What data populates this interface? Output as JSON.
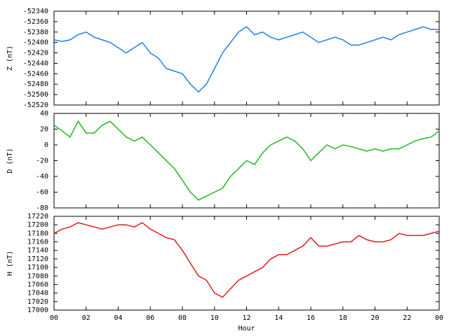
{
  "chart_data": [
    {
      "type": "line",
      "ylabel": "Z (nT)",
      "ylim": [
        -52520,
        -52340
      ],
      "yticks": [
        -52520,
        -52500,
        -52480,
        -52460,
        -52440,
        -52420,
        -52400,
        -52380,
        -52360,
        -52340
      ],
      "xlim": [
        0,
        24
      ],
      "x": [
        0,
        0.5,
        1,
        1.5,
        2,
        2.5,
        3,
        3.5,
        4,
        4.5,
        5,
        5.5,
        6,
        6.5,
        7,
        7.5,
        8,
        8.5,
        9,
        9.5,
        10,
        10.5,
        11,
        11.5,
        12,
        12.5,
        13,
        13.5,
        14,
        14.5,
        15,
        15.5,
        16,
        16.5,
        17,
        17.5,
        18,
        18.5,
        19,
        19.5,
        20,
        20.5,
        21,
        21.5,
        22,
        22.5,
        23,
        23.5,
        24
      ],
      "series": [
        {
          "color": "#1e7fe8",
          "values": [
            -52395,
            -52398,
            -52395,
            -52385,
            -52380,
            -52390,
            -52395,
            -52400,
            -52410,
            -52420,
            -52410,
            -52400,
            -52420,
            -52430,
            -52450,
            -52455,
            -52460,
            -52480,
            -52495,
            -52480,
            -52450,
            -52420,
            -52400,
            -52380,
            -52370,
            -52385,
            -52380,
            -52390,
            -52395,
            -52390,
            -52385,
            -52380,
            -52390,
            -52400,
            -52395,
            -52390,
            -52395,
            -52405,
            -52405,
            -52400,
            -52395,
            -52390,
            -52395,
            -52385,
            -52380,
            -52375,
            -52370,
            -52375,
            -52375
          ]
        }
      ]
    },
    {
      "type": "line",
      "ylabel": "D (nT)",
      "ylim": [
        -80,
        40
      ],
      "yticks": [
        -80,
        -60,
        -40,
        -20,
        0,
        20,
        40
      ],
      "xlim": [
        0,
        24
      ],
      "x": [
        0,
        0.5,
        1,
        1.5,
        2,
        2.5,
        3,
        3.5,
        4,
        4.5,
        5,
        5.5,
        6,
        6.5,
        7,
        7.5,
        8,
        8.5,
        9,
        9.5,
        10,
        10.5,
        11,
        11.5,
        12,
        12.5,
        13,
        13.5,
        14,
        14.5,
        15,
        15.5,
        16,
        16.5,
        17,
        17.5,
        18,
        18.5,
        19,
        19.5,
        20,
        20.5,
        21,
        21.5,
        22,
        22.5,
        23,
        23.5,
        24
      ],
      "series": [
        {
          "color": "#22b822",
          "values": [
            25,
            18,
            10,
            30,
            15,
            15,
            25,
            30,
            20,
            10,
            5,
            10,
            0,
            -10,
            -20,
            -30,
            -45,
            -60,
            -70,
            -65,
            -60,
            -55,
            -40,
            -30,
            -20,
            -25,
            -10,
            0,
            5,
            10,
            5,
            -5,
            -20,
            -10,
            0,
            -5,
            0,
            -2,
            -5,
            -8,
            -5,
            -8,
            -5,
            -5,
            0,
            5,
            8,
            10,
            18
          ]
        }
      ]
    },
    {
      "type": "line",
      "ylabel": "H (nT)",
      "xlabel": "Hour",
      "ylim": [
        17000,
        17220
      ],
      "yticks": [
        17000,
        17020,
        17040,
        17060,
        17080,
        17100,
        17120,
        17140,
        17160,
        17180,
        17200,
        17220
      ],
      "xlim": [
        0,
        24
      ],
      "xticks": [
        {
          "value": 0,
          "label": "00"
        },
        {
          "value": 2,
          "label": "02"
        },
        {
          "value": 4,
          "label": "04"
        },
        {
          "value": 6,
          "label": "06"
        },
        {
          "value": 8,
          "label": "08"
        },
        10,
        12,
        14,
        16,
        18,
        20,
        22,
        {
          "value": 24,
          "label": "00"
        }
      ],
      "x": [
        0,
        0.5,
        1,
        1.5,
        2,
        2.5,
        3,
        3.5,
        4,
        4.5,
        5,
        5.5,
        6,
        6.5,
        7,
        7.5,
        8,
        8.5,
        9,
        9.5,
        10,
        10.5,
        11,
        11.5,
        12,
        12.5,
        13,
        13.5,
        14,
        14.5,
        15,
        15.5,
        16,
        16.5,
        17,
        17.5,
        18,
        18.5,
        19,
        19.5,
        20,
        20.5,
        21,
        21.5,
        22,
        22.5,
        23,
        23.5,
        24
      ],
      "series": [
        {
          "color": "#e01c1c",
          "values": [
            17180,
            17190,
            17195,
            17205,
            17200,
            17195,
            17190,
            17195,
            17200,
            17200,
            17195,
            17205,
            17190,
            17180,
            17170,
            17165,
            17140,
            17110,
            17080,
            17070,
            17040,
            17030,
            17050,
            17070,
            17080,
            17090,
            17100,
            17120,
            17130,
            17130,
            17140,
            17150,
            17170,
            17150,
            17150,
            17155,
            17160,
            17160,
            17175,
            17165,
            17160,
            17160,
            17165,
            17180,
            17175,
            17175,
            17175,
            17180,
            17185
          ]
        }
      ]
    }
  ]
}
